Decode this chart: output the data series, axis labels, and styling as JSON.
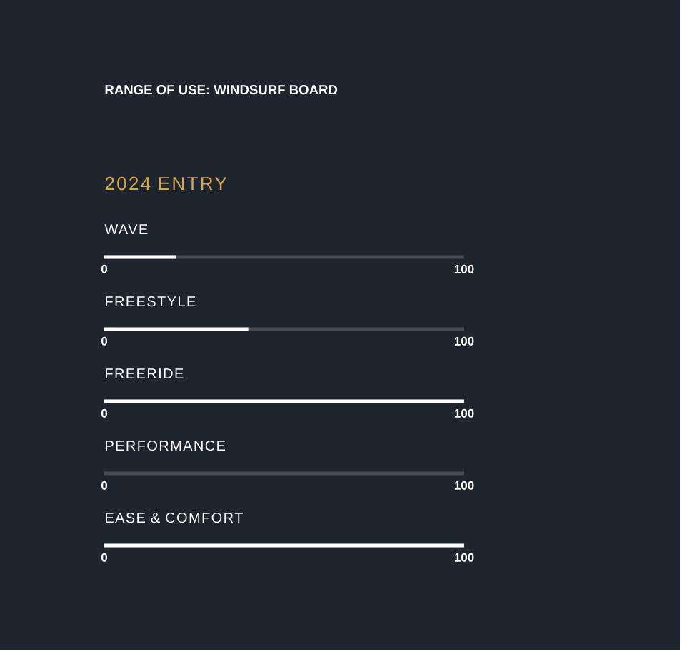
{
  "chart_data": [
    {
      "type": "bar",
      "orientation": "horizontal",
      "title": "RANGE OF USE: WINDSURF BOARD",
      "subtitle": "2024 ENTRY",
      "categories": [
        "WAVE"
      ],
      "values": [
        20
      ],
      "color": "#ffffff",
      "xlim": [
        0,
        100
      ],
      "xticks": [
        0,
        100
      ]
    },
    {
      "type": "bar",
      "orientation": "horizontal",
      "categories": [
        "FREESTYLE"
      ],
      "values": [
        40
      ],
      "color": "#ffffff",
      "xlim": [
        0,
        100
      ],
      "xticks": [
        0,
        100
      ]
    },
    {
      "type": "bar",
      "orientation": "horizontal",
      "categories": [
        "FREERIDE"
      ],
      "values": [
        100
      ],
      "color": "#ffffff",
      "xlim": [
        0,
        100
      ],
      "xticks": [
        0,
        100
      ]
    },
    {
      "type": "bar",
      "orientation": "horizontal",
      "categories": [
        "PERFORMANCE"
      ],
      "values": [
        0
      ],
      "color": "#ffffff",
      "xlim": [
        0,
        100
      ],
      "xticks": [
        0,
        100
      ]
    },
    {
      "type": "bar",
      "orientation": "horizontal",
      "categories": [
        "EASE & COMFORT"
      ],
      "values": [
        100
      ],
      "color": "#ffffff",
      "xlim": [
        0,
        100
      ],
      "xticks": [
        0,
        100
      ]
    }
  ]
}
